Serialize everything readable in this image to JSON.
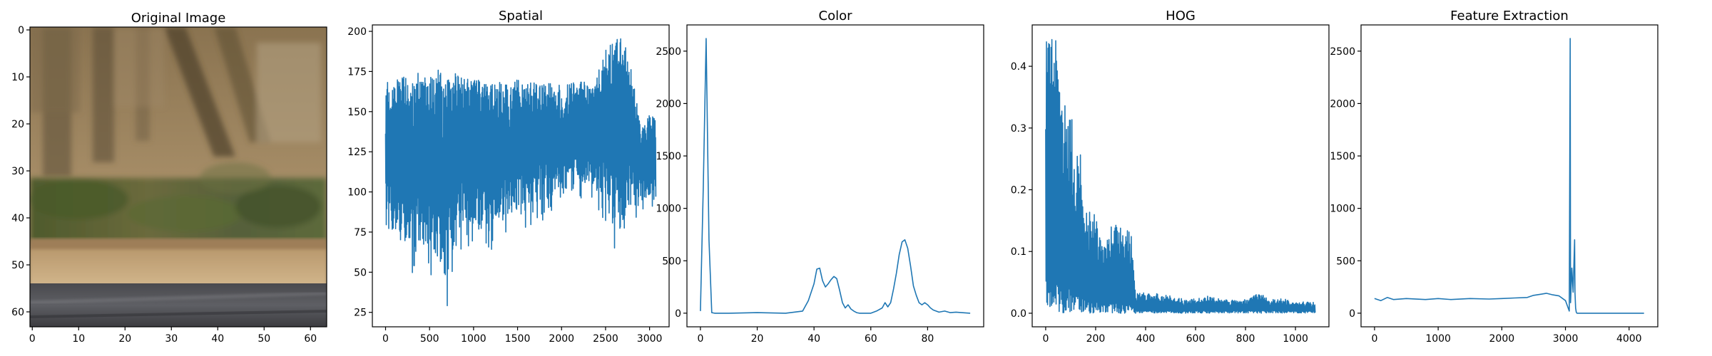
{
  "colors": {
    "line": "#1f77b4",
    "axes": "#000000",
    "background": "#ffffff"
  },
  "image_panel": {
    "title": "Original Image",
    "x_ticks": [
      "0",
      "10",
      "20",
      "30",
      "40",
      "50",
      "60"
    ],
    "y_ticks": [
      "0",
      "10",
      "20",
      "30",
      "40",
      "50",
      "60"
    ],
    "content": "blurred roadside scene: dry brush and tree trunks on a sandy bank, green shrubs, tan shoulder and grey asphalt road"
  },
  "chart_data": [
    {
      "type": "line",
      "title": "Spatial",
      "xlabel": "",
      "ylabel": "",
      "xlim": [
        -150,
        3222
      ],
      "ylim": [
        16,
        204
      ],
      "x_ticks": [
        0,
        500,
        1000,
        1500,
        2000,
        2500,
        3000
      ],
      "y_ticks": [
        25,
        50,
        75,
        100,
        125,
        150,
        175,
        200
      ],
      "x_range": [
        0,
        3071
      ],
      "description": "dense oscillation of 3072 spatial-binned pixel values; upper envelope ~165-175 rising to ~195 near 2500-2750, lower spikes down to ~23 around x=650",
      "envelope": {
        "x": [
          0,
          100,
          200,
          300,
          400,
          500,
          600,
          700,
          800,
          900,
          1000,
          1100,
          1200,
          1300,
          1400,
          1500,
          1600,
          1700,
          1800,
          1900,
          2000,
          2100,
          2200,
          2300,
          2400,
          2500,
          2600,
          2700,
          2800,
          2900,
          3000,
          3071
        ],
        "upper": [
          168,
          172,
          174,
          170,
          176,
          172,
          180,
          170,
          174,
          170,
          172,
          168,
          168,
          170,
          168,
          170,
          168,
          170,
          168,
          168,
          166,
          168,
          168,
          170,
          172,
          190,
          196,
          196,
          174,
          140,
          148,
          146
        ],
        "lower": [
          60,
          58,
          55,
          50,
          45,
          48,
          35,
          23,
          55,
          70,
          60,
          65,
          62,
          70,
          72,
          75,
          78,
          80,
          82,
          85,
          88,
          92,
          95,
          95,
          88,
          78,
          65,
          60,
          80,
          85,
          90,
          92
        ]
      }
    },
    {
      "type": "line",
      "title": "Color",
      "xlabel": "",
      "ylabel": "",
      "xlim": [
        -4.75,
        99.75
      ],
      "ylim": [
        -130,
        2750
      ],
      "x_ticks": [
        0,
        20,
        40,
        60,
        80
      ],
      "y_ticks": [
        0,
        500,
        1000,
        1500,
        2000,
        2500
      ],
      "x": [
        0,
        1,
        2,
        3,
        4,
        5,
        10,
        20,
        30,
        36,
        38,
        40,
        41,
        42,
        43,
        44,
        45,
        46,
        47,
        48,
        49,
        50,
        51,
        52,
        53,
        54,
        55,
        56,
        58,
        60,
        62,
        64,
        65,
        66,
        67,
        68,
        69,
        70,
        71,
        72,
        73,
        74,
        75,
        76,
        77,
        78,
        79,
        80,
        81,
        82,
        84,
        86,
        88,
        90,
        92,
        95
      ],
      "values": [
        20,
        1200,
        2620,
        700,
        5,
        0,
        0,
        5,
        0,
        20,
        120,
        280,
        420,
        430,
        310,
        250,
        280,
        320,
        350,
        330,
        220,
        100,
        50,
        80,
        40,
        20,
        5,
        0,
        0,
        0,
        20,
        50,
        100,
        60,
        100,
        230,
        380,
        560,
        680,
        700,
        620,
        450,
        260,
        170,
        100,
        80,
        100,
        80,
        50,
        30,
        10,
        20,
        5,
        10,
        5,
        0
      ]
    },
    {
      "type": "line",
      "title": "HOG",
      "xlabel": "",
      "ylabel": "",
      "xlim": [
        -54,
        1134
      ],
      "ylim": [
        -0.022,
        0.467
      ],
      "x_ticks": [
        0,
        200,
        400,
        600,
        800,
        1000
      ],
      "y_ticks": [
        0.0,
        0.1,
        0.2,
        0.3,
        0.4
      ],
      "x_range": [
        0,
        1079
      ],
      "description": "HOG feature vector of 1080 values; tall oscillating spikes up to ~0.445 for x<50, ~0.34 for x 50-110, ~0.26 for x 110-160, ~0.15-0.17 for x 160-350, then small noise ~0.01-0.03 to the end",
      "envelope": {
        "x": [
          0,
          20,
          40,
          60,
          80,
          100,
          120,
          140,
          160,
          180,
          200,
          220,
          240,
          260,
          280,
          300,
          320,
          340,
          360,
          400,
          450,
          500,
          550,
          600,
          650,
          700,
          750,
          800,
          850,
          900,
          950,
          1000,
          1050,
          1079
        ],
        "upper": [
          0.44,
          0.445,
          0.445,
          0.34,
          0.34,
          0.34,
          0.26,
          0.26,
          0.17,
          0.17,
          0.16,
          0.12,
          0.11,
          0.145,
          0.145,
          0.14,
          0.14,
          0.14,
          0.03,
          0.03,
          0.028,
          0.025,
          0.02,
          0.02,
          0.025,
          0.02,
          0.02,
          0.02,
          0.03,
          0.02,
          0.02,
          0.015,
          0.015,
          0.015
        ]
      }
    },
    {
      "type": "line",
      "title": "Feature Extraction",
      "xlabel": "",
      "ylabel": "",
      "xlim": [
        -212,
        4451
      ],
      "ylim": [
        -130,
        2750
      ],
      "x_ticks": [
        0,
        1000,
        2000,
        3000,
        4000
      ],
      "y_ticks": [
        0,
        500,
        1000,
        1500,
        2000,
        2500
      ],
      "x": [
        0,
        100,
        200,
        300,
        500,
        800,
        1000,
        1200,
        1500,
        1800,
        2000,
        2200,
        2400,
        2500,
        2600,
        2700,
        2800,
        2900,
        3000,
        3060,
        3074,
        3080,
        3100,
        3120,
        3144,
        3150,
        3160,
        3170,
        3180,
        3200,
        3300,
        3500,
        4000,
        4235
      ],
      "values": [
        140,
        120,
        150,
        130,
        140,
        130,
        140,
        130,
        140,
        135,
        140,
        145,
        150,
        170,
        180,
        190,
        175,
        165,
        120,
        20,
        2620,
        100,
        430,
        200,
        700,
        200,
        50,
        10,
        0,
        0,
        0,
        0,
        0,
        0
      ]
    }
  ]
}
